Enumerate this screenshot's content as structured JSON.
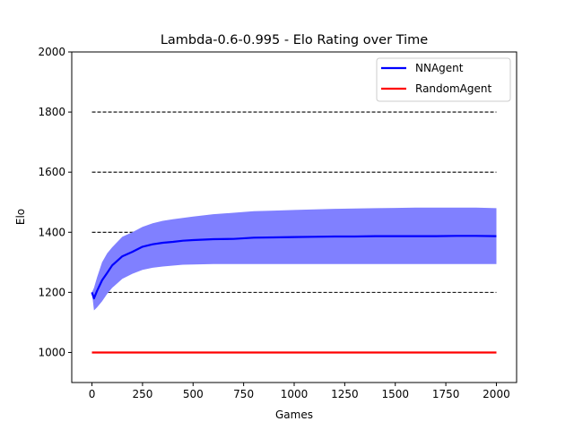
{
  "chart_data": {
    "type": "line",
    "title": "Lambda-0.6-0.995 - Elo Rating over Time",
    "xlabel": "Games",
    "ylabel": "Elo",
    "xlim": [
      -100,
      2100
    ],
    "ylim": [
      900,
      2000
    ],
    "xticks": [
      "0",
      "250",
      "500",
      "750",
      "1000",
      "1250",
      "1500",
      "1750",
      "2000"
    ],
    "yticks": [
      "1000",
      "1200",
      "1400",
      "1600",
      "1800",
      "2000"
    ],
    "reference_lines": [
      1200,
      1400,
      1600,
      1800
    ],
    "legend_position": "upper right",
    "grid": false,
    "series": [
      {
        "name": "NNAgent",
        "color": "#0000ff",
        "band_color": "#8080ff",
        "x": [
          0,
          10,
          25,
          50,
          75,
          100,
          150,
          200,
          250,
          300,
          350,
          400,
          450,
          500,
          600,
          700,
          800,
          900,
          1000,
          1100,
          1200,
          1300,
          1400,
          1500,
          1600,
          1700,
          1800,
          1900,
          2000
        ],
        "y": [
          1200,
          1180,
          1205,
          1240,
          1265,
          1290,
          1320,
          1335,
          1352,
          1360,
          1365,
          1368,
          1372,
          1374,
          1377,
          1378,
          1382,
          1383,
          1384,
          1385,
          1386,
          1386,
          1387,
          1387,
          1387,
          1387,
          1388,
          1388,
          1387
        ],
        "upper": [
          1200,
          1215,
          1250,
          1300,
          1330,
          1350,
          1385,
          1400,
          1418,
          1430,
          1438,
          1443,
          1448,
          1452,
          1460,
          1465,
          1470,
          1472,
          1474,
          1476,
          1478,
          1479,
          1480,
          1481,
          1482,
          1482,
          1482,
          1482,
          1480
        ],
        "lower": [
          1200,
          1140,
          1150,
          1170,
          1195,
          1215,
          1245,
          1262,
          1275,
          1282,
          1286,
          1289,
          1292,
          1293,
          1294,
          1294,
          1294,
          1294,
          1294,
          1294,
          1294,
          1294,
          1294,
          1294,
          1294,
          1294,
          1294,
          1294,
          1294
        ]
      },
      {
        "name": "RandomAgent",
        "color": "#ff0000",
        "x": [
          0,
          2000
        ],
        "y": [
          1000,
          1000
        ]
      }
    ]
  }
}
